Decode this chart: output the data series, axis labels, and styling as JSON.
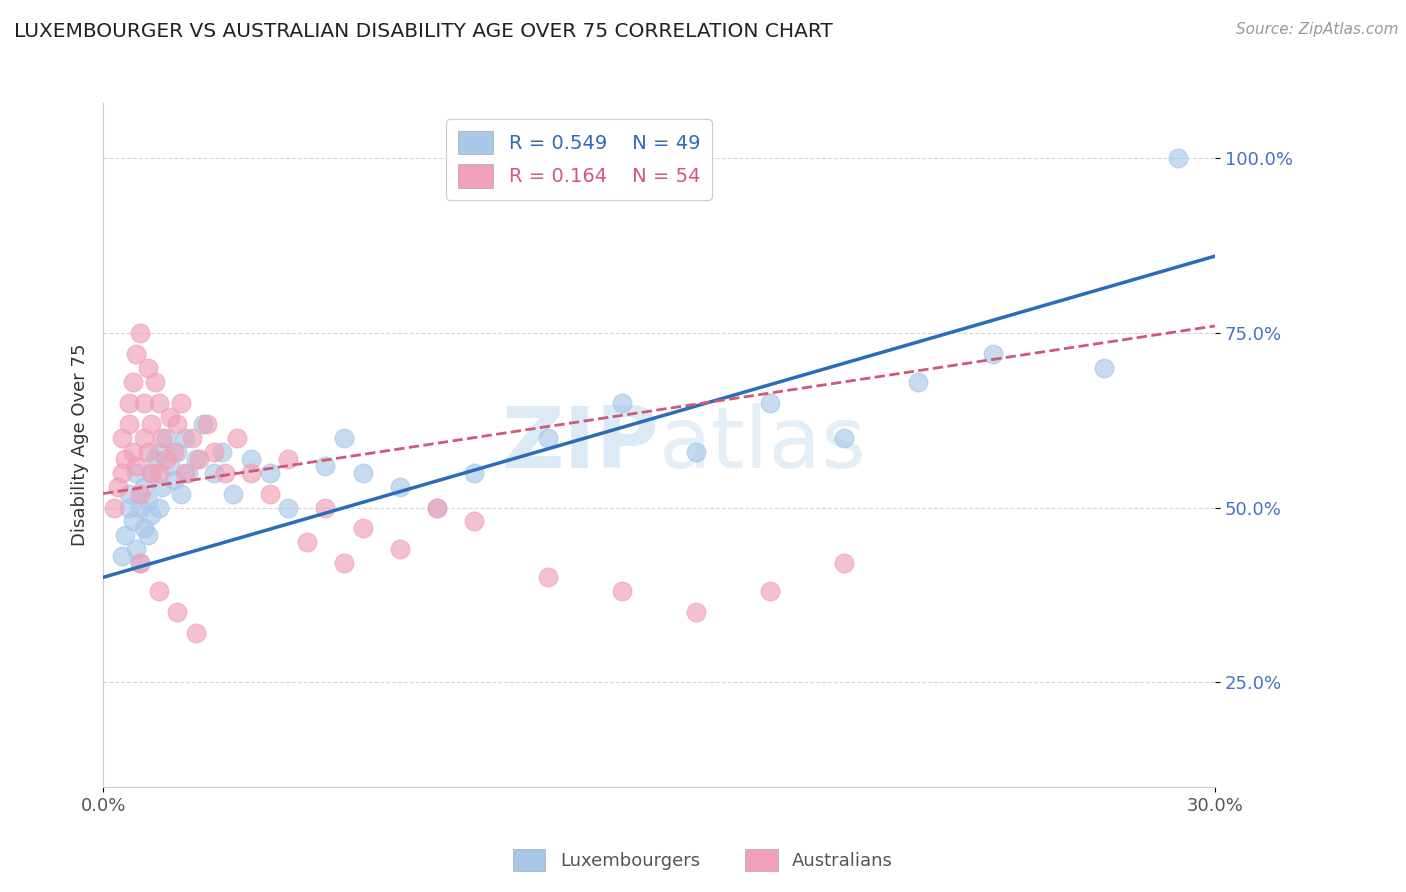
{
  "title": "LUXEMBOURGER VS AUSTRALIAN DISABILITY AGE OVER 75 CORRELATION CHART",
  "source_text": "Source: ZipAtlas.com",
  "ylabel": "Disability Age Over 75",
  "xlim": [
    0.0,
    0.3
  ],
  "ylim": [
    0.1,
    1.08
  ],
  "ytick_positions": [
    0.25,
    0.5,
    0.75,
    1.0
  ],
  "ytick_labels": [
    "25.0%",
    "50.0%",
    "75.0%",
    "100.0%"
  ],
  "lux_R": 0.549,
  "lux_N": 49,
  "aus_R": 0.164,
  "aus_N": 54,
  "lux_color": "#A8C8E8",
  "aus_color": "#F0A0B8",
  "lux_line_color": "#2B6CB8",
  "aus_line_color": "#D05878",
  "watermark_zip": "ZIP",
  "watermark_atlas": "atlas",
  "legend_lux": "Luxembourgers",
  "legend_aus": "Australians",
  "lux_x": [
    0.005,
    0.006,
    0.007,
    0.007,
    0.008,
    0.009,
    0.009,
    0.01,
    0.01,
    0.011,
    0.011,
    0.012,
    0.012,
    0.013,
    0.013,
    0.014,
    0.015,
    0.015,
    0.016,
    0.017,
    0.018,
    0.019,
    0.02,
    0.021,
    0.022,
    0.023,
    0.025,
    0.027,
    0.03,
    0.032,
    0.035,
    0.04,
    0.045,
    0.05,
    0.06,
    0.065,
    0.07,
    0.08,
    0.09,
    0.1,
    0.12,
    0.14,
    0.16,
    0.18,
    0.2,
    0.22,
    0.24,
    0.27,
    0.29
  ],
  "lux_y": [
    0.43,
    0.46,
    0.5,
    0.52,
    0.48,
    0.44,
    0.55,
    0.42,
    0.5,
    0.47,
    0.53,
    0.46,
    0.51,
    0.49,
    0.55,
    0.57,
    0.5,
    0.58,
    0.53,
    0.6,
    0.56,
    0.54,
    0.58,
    0.52,
    0.6,
    0.55,
    0.57,
    0.62,
    0.55,
    0.58,
    0.52,
    0.57,
    0.55,
    0.5,
    0.56,
    0.6,
    0.55,
    0.53,
    0.5,
    0.55,
    0.6,
    0.65,
    0.58,
    0.65,
    0.6,
    0.68,
    0.72,
    0.7,
    1.0
  ],
  "aus_x": [
    0.003,
    0.004,
    0.005,
    0.005,
    0.006,
    0.007,
    0.007,
    0.008,
    0.008,
    0.009,
    0.009,
    0.01,
    0.01,
    0.011,
    0.011,
    0.012,
    0.012,
    0.013,
    0.013,
    0.014,
    0.015,
    0.015,
    0.016,
    0.017,
    0.018,
    0.019,
    0.02,
    0.021,
    0.022,
    0.024,
    0.026,
    0.028,
    0.03,
    0.033,
    0.036,
    0.04,
    0.045,
    0.05,
    0.055,
    0.06,
    0.065,
    0.07,
    0.08,
    0.09,
    0.1,
    0.12,
    0.14,
    0.16,
    0.18,
    0.2,
    0.01,
    0.015,
    0.02,
    0.025
  ],
  "aus_y": [
    0.5,
    0.53,
    0.55,
    0.6,
    0.57,
    0.62,
    0.65,
    0.68,
    0.58,
    0.72,
    0.56,
    0.75,
    0.52,
    0.65,
    0.6,
    0.7,
    0.58,
    0.55,
    0.62,
    0.68,
    0.55,
    0.65,
    0.6,
    0.57,
    0.63,
    0.58,
    0.62,
    0.65,
    0.55,
    0.6,
    0.57,
    0.62,
    0.58,
    0.55,
    0.6,
    0.55,
    0.52,
    0.57,
    0.45,
    0.5,
    0.42,
    0.47,
    0.44,
    0.5,
    0.48,
    0.4,
    0.38,
    0.35,
    0.38,
    0.42,
    0.42,
    0.38,
    0.35,
    0.32
  ]
}
